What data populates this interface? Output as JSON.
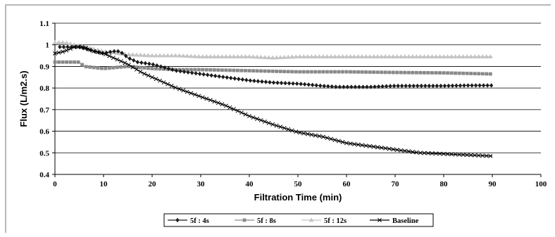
{
  "chart_data": {
    "type": "line",
    "title": "",
    "xlabel": "Filtration Time (min)",
    "ylabel": "Flux (L/m2.s)",
    "xlim": [
      0,
      100
    ],
    "ylim": [
      0.4,
      1.1
    ],
    "xticks": [
      "0",
      "10",
      "20",
      "30",
      "40",
      "50",
      "60",
      "70",
      "80",
      "90",
      "100"
    ],
    "yticks": [
      "0.4",
      "0.5",
      "0.6",
      "0.7",
      "0.8",
      "0.9",
      "1",
      "1.1"
    ],
    "grid": "horizontal",
    "legend_position": "bottom",
    "series": [
      {
        "name": "5f : 4s",
        "color": "#1a1a1a",
        "marker": "diamond",
        "x": [
          1,
          3,
          5,
          8,
          10,
          12,
          13,
          14,
          15,
          17,
          20,
          25,
          30,
          35,
          40,
          45,
          50,
          55,
          58,
          60,
          65,
          70,
          75,
          80,
          85,
          90
        ],
        "y": [
          0.99,
          0.99,
          0.99,
          0.97,
          0.96,
          0.97,
          0.97,
          0.96,
          0.94,
          0.92,
          0.91,
          0.88,
          0.865,
          0.85,
          0.835,
          0.825,
          0.82,
          0.81,
          0.805,
          0.805,
          0.805,
          0.81,
          0.81,
          0.81,
          0.812,
          0.812
        ]
      },
      {
        "name": "5f : 8s",
        "color": "#8a8a8a",
        "marker": "square",
        "x": [
          0,
          5,
          6,
          10,
          15,
          20,
          25,
          30,
          40,
          50,
          60,
          70,
          80,
          90
        ],
        "y": [
          0.92,
          0.92,
          0.9,
          0.89,
          0.9,
          0.89,
          0.885,
          0.885,
          0.88,
          0.875,
          0.875,
          0.872,
          0.87,
          0.865
        ]
      },
      {
        "name": "5f : 12s",
        "color": "#c4c4c4",
        "marker": "triangle",
        "x": [
          0,
          2,
          4,
          6,
          10,
          15,
          20,
          25,
          30,
          35,
          40,
          45,
          50,
          55,
          60,
          70,
          80,
          90
        ],
        "y": [
          1.01,
          1.01,
          1.0,
          0.99,
          0.97,
          0.955,
          0.95,
          0.95,
          0.945,
          0.945,
          0.945,
          0.94,
          0.945,
          0.945,
          0.945,
          0.945,
          0.945,
          0.945
        ]
      },
      {
        "name": "Baseline",
        "color": "#000000",
        "marker": "x",
        "x": [
          0,
          2,
          4,
          6,
          8,
          10,
          12,
          15,
          18,
          20,
          25,
          30,
          35,
          40,
          45,
          50,
          55,
          60,
          65,
          70,
          75,
          80,
          85,
          90
        ],
        "y": [
          0.96,
          0.97,
          0.99,
          0.99,
          0.97,
          0.96,
          0.94,
          0.91,
          0.87,
          0.85,
          0.8,
          0.76,
          0.72,
          0.67,
          0.63,
          0.595,
          0.575,
          0.545,
          0.53,
          0.515,
          0.5,
          0.495,
          0.49,
          0.485
        ]
      }
    ]
  }
}
